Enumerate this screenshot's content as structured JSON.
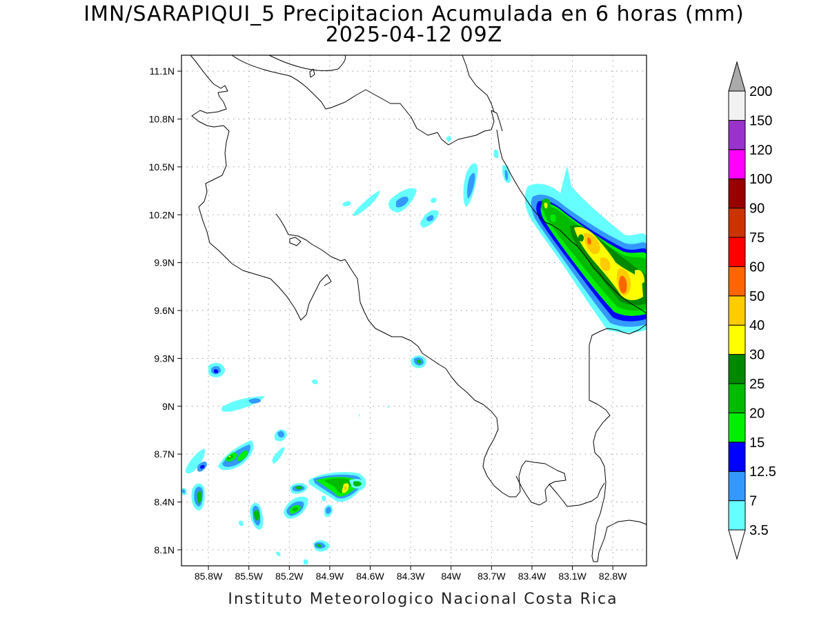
{
  "title": {
    "line1": "IMN/SARAPIQUI_5 Precipitacion Acumulada en 6 horas (mm)",
    "line2": "2025-04-12 09Z"
  },
  "credit": "Instituto Meteorologico Nacional Costa Rica",
  "map": {
    "lon_range": [
      -86.0,
      -82.55
    ],
    "lat_range": [
      8.0,
      11.2
    ],
    "lat_ticks": [
      {
        "value": 8.1,
        "label": "8.1N"
      },
      {
        "value": 8.4,
        "label": "8.4N"
      },
      {
        "value": 8.7,
        "label": "8.7N"
      },
      {
        "value": 9.0,
        "label": "9N"
      },
      {
        "value": 9.3,
        "label": "9.3N"
      },
      {
        "value": 9.6,
        "label": "9.6N"
      },
      {
        "value": 9.9,
        "label": "9.9N"
      },
      {
        "value": 10.2,
        "label": "10.2N"
      },
      {
        "value": 10.5,
        "label": "10.5N"
      },
      {
        "value": 10.8,
        "label": "10.8N"
      },
      {
        "value": 11.1,
        "label": "11.1N"
      }
    ],
    "lon_ticks": [
      {
        "value": -85.8,
        "label": "85.8W"
      },
      {
        "value": -85.5,
        "label": "85.5W"
      },
      {
        "value": -85.2,
        "label": "85.2W"
      },
      {
        "value": -84.9,
        "label": "84.9W"
      },
      {
        "value": -84.6,
        "label": "84.6W"
      },
      {
        "value": -84.3,
        "label": "84.3W"
      },
      {
        "value": -84.0,
        "label": "84W"
      },
      {
        "value": -83.7,
        "label": "83.7W"
      },
      {
        "value": -83.4,
        "label": "83.4W"
      },
      {
        "value": -83.1,
        "label": "83.1W"
      },
      {
        "value": -82.8,
        "label": "82.8W"
      }
    ],
    "grid": true
  },
  "colorbar": {
    "levels": [
      "3.5",
      "7",
      "12.5",
      "15",
      "20",
      "25",
      "30",
      "40",
      "50",
      "60",
      "75",
      "90",
      "100",
      "120",
      "150",
      "200"
    ],
    "colors": [
      "#66ffff",
      "#3399ff",
      "#0000ff",
      "#00ee00",
      "#00bb00",
      "#008800",
      "#ffff00",
      "#ffcc00",
      "#ff6600",
      "#ff0000",
      "#cc3300",
      "#990000",
      "#ff00ff",
      "#9933cc",
      "#f2f2f2"
    ],
    "min_color": "#ffffff",
    "max_color": "#aaaaaa"
  }
}
